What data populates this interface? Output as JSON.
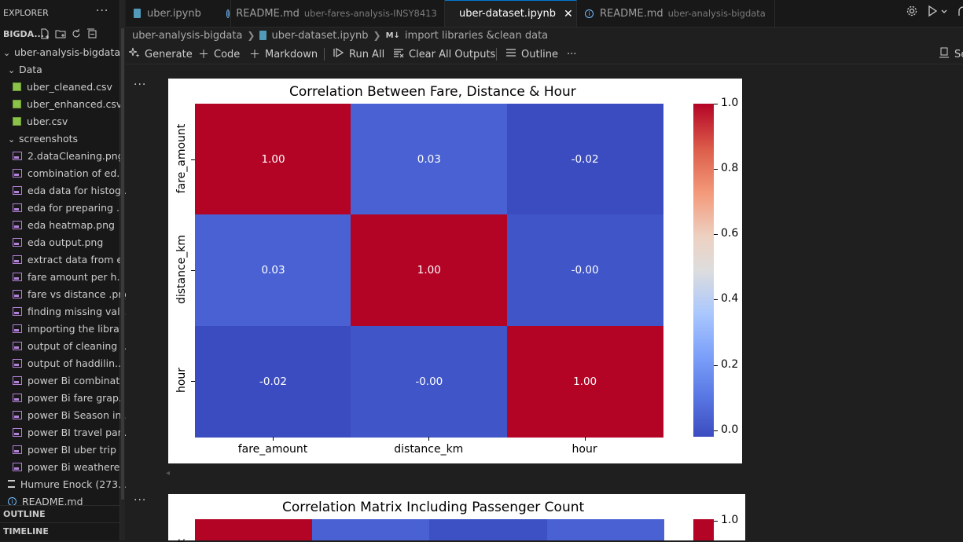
{
  "explorer": {
    "title": "EXPLORER",
    "more": "···",
    "folder_short": "BIGDA...",
    "tree": [
      {
        "label": "uber-analysis-bigdata",
        "type": "folder",
        "depth": 0
      },
      {
        "label": "Data",
        "type": "folder",
        "depth": 1
      },
      {
        "label": "uber_cleaned.csv",
        "type": "csv",
        "depth": 2
      },
      {
        "label": "uber_enhanced.csv",
        "type": "csv",
        "depth": 2
      },
      {
        "label": "uber.csv",
        "type": "csv",
        "depth": 2
      },
      {
        "label": "screenshots",
        "type": "folder",
        "depth": 1
      },
      {
        "label": "2.dataCleaning.png",
        "type": "img",
        "depth": 2
      },
      {
        "label": "combination of ed...",
        "type": "img",
        "depth": 2
      },
      {
        "label": "eda data for histog...",
        "type": "img",
        "depth": 2
      },
      {
        "label": "eda for preparing ...",
        "type": "img",
        "depth": 2
      },
      {
        "label": "eda heatmap.png",
        "type": "img",
        "depth": 2
      },
      {
        "label": "eda output.png",
        "type": "img",
        "depth": 2
      },
      {
        "label": "extract data from e...",
        "type": "img",
        "depth": 2
      },
      {
        "label": "fare amount per h...",
        "type": "img",
        "depth": 2
      },
      {
        "label": "fare vs distance .png",
        "type": "img",
        "depth": 2
      },
      {
        "label": "finding missing val...",
        "type": "img",
        "depth": 2
      },
      {
        "label": "importing the libra...",
        "type": "img",
        "depth": 2
      },
      {
        "label": "output of cleaning ...",
        "type": "img",
        "depth": 2
      },
      {
        "label": "output of haddilin...",
        "type": "img",
        "depth": 2
      },
      {
        "label": "power Bi combinat...",
        "type": "img",
        "depth": 2
      },
      {
        "label": "power Bi fare grap...",
        "type": "img",
        "depth": 2
      },
      {
        "label": "power Bi Season in...",
        "type": "img",
        "depth": 2
      },
      {
        "label": "power BI travel par...",
        "type": "img",
        "depth": 2
      },
      {
        "label": "power BI uber trip ...",
        "type": "img",
        "depth": 2
      },
      {
        "label": "power Bi weathere...",
        "type": "img",
        "depth": 2
      },
      {
        "label": "Humure Enock (273...",
        "type": "list",
        "depth": 1
      },
      {
        "label": "README.md",
        "type": "info",
        "depth": 1
      }
    ],
    "outline": "OUTLINE",
    "timeline": "TIMELINE"
  },
  "tabs": [
    {
      "name": "uber.ipynb",
      "sub": "",
      "icon": "notebook-icon",
      "active": false
    },
    {
      "name": "README.md",
      "sub": "uber-fares-analysis-INSY8413",
      "icon": "info-icon",
      "active": false
    },
    {
      "name": "uber-dataset.ipynb",
      "sub": "",
      "icon": "notebook-icon",
      "active": true,
      "close": "✕"
    },
    {
      "name": "README.md",
      "sub": "uber-analysis-bigdata",
      "icon": "info-icon",
      "active": false
    }
  ],
  "breadcrumb": {
    "folder": "uber-analysis-bigdata",
    "file": "uber-dataset.ipynb",
    "md_tag": "M↓",
    "section": "import libraries &clean data"
  },
  "toolbar": {
    "generate": "Generate",
    "code": "Code",
    "markdown": "Markdown",
    "run_all": "Run All",
    "clear_outputs": "Clear All Outputs",
    "outline": "Outline",
    "more": "···",
    "right_label": "Se"
  },
  "cell_more": "···",
  "chart_data": [
    {
      "type": "heatmap",
      "title": "Correlation Between Fare, Distance & Hour",
      "rows": [
        "fare_amount",
        "distance_km",
        "hour"
      ],
      "columns": [
        "fare_amount",
        "distance_km",
        "hour"
      ],
      "values": [
        [
          1.0,
          0.03,
          -0.02
        ],
        [
          0.03,
          1.0,
          -0.0
        ],
        [
          -0.02,
          -0.0,
          1.0
        ]
      ],
      "labels": [
        [
          "1.00",
          "0.03",
          "-0.02"
        ],
        [
          "0.03",
          "1.00",
          "-0.00"
        ],
        [
          "-0.02",
          "-0.00",
          "1.00"
        ]
      ],
      "colormap": "coolwarm",
      "colorbar_range": [
        -0.02,
        1.0
      ],
      "colorbar_ticks": [
        "1.0",
        "0.8",
        "0.6",
        "0.4",
        "0.2",
        "0.0"
      ],
      "colors": {
        "high": "#b40426",
        "mid_low": "#4961d2",
        "low": "#3b4cc0"
      }
    },
    {
      "type": "heatmap",
      "title": "Correlation Matrix Including Passenger Count",
      "colorbar_ticks": [
        "1.0"
      ],
      "partial": true
    }
  ]
}
